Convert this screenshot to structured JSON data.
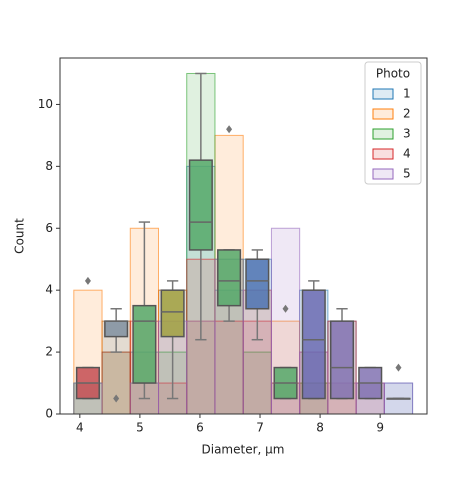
{
  "chart_data": {
    "type": "histogram",
    "xlabel": "Diameter, µm",
    "ylabel": "Count",
    "xlim": [
      3.67,
      9.78
    ],
    "ylim": [
      0,
      11.5
    ],
    "xticks": [
      4,
      5,
      6,
      7,
      8,
      9
    ],
    "yticks": [
      0,
      2,
      4,
      6,
      8,
      10
    ],
    "bins": [
      3.9,
      4.37,
      4.84,
      5.31,
      5.78,
      6.25,
      6.72,
      7.19,
      7.66,
      8.13,
      8.6,
      9.07,
      9.54
    ],
    "legend_title": "Photo",
    "legend_position": "upper right",
    "series": [
      {
        "name": "1",
        "color": "#1f77b4",
        "values": [
          1,
          3,
          2,
          4,
          8,
          4,
          5,
          1,
          4,
          3,
          1,
          1
        ]
      },
      {
        "name": "2",
        "color": "#ff7f0e",
        "values": [
          4,
          3,
          6,
          4,
          3,
          9,
          4,
          3,
          1,
          1,
          0,
          0
        ]
      },
      {
        "name": "3",
        "color": "#2ca02c",
        "values": [
          1,
          2,
          1,
          2,
          11,
          5,
          2,
          0,
          1,
          0,
          0,
          0
        ]
      },
      {
        "name": "4",
        "color": "#d62728",
        "values": [
          0,
          2,
          3,
          1,
          5,
          3,
          3,
          1,
          2,
          3,
          1,
          0
        ]
      },
      {
        "name": "5",
        "color": "#9467bd",
        "values": [
          1,
          0,
          1,
          3,
          3,
          5,
          4,
          6,
          2,
          1,
          1,
          1
        ]
      }
    ],
    "boxes": [
      {
        "x": 4.135,
        "low": 0.5,
        "q1": 0.5,
        "median": 1,
        "q3": 1.5,
        "high": 1.5,
        "color": "#c44e52"
      },
      {
        "x": 4.605,
        "low": 2,
        "q1": 2.5,
        "median": 3,
        "q3": 3,
        "high": 3.4,
        "color": "#7f8fa0"
      },
      {
        "x": 5.075,
        "low": 0.5,
        "q1": 1,
        "median": 3,
        "q3": 3.5,
        "high": 6.2,
        "color": "#55a868"
      },
      {
        "x": 5.545,
        "low": 0.5,
        "q1": 2.5,
        "median": 3.3,
        "q3": 4,
        "high": 4.3,
        "color": "#a0a040"
      },
      {
        "x": 6.015,
        "low": 2.4,
        "q1": 5.3,
        "median": 6.2,
        "q3": 8.2,
        "high": 11,
        "color": "#55a868"
      },
      {
        "x": 6.485,
        "low": 3,
        "q1": 3.5,
        "median": 4.3,
        "q3": 5.3,
        "high": 5.3,
        "color": "#55a868"
      },
      {
        "x": 6.955,
        "low": 2.4,
        "q1": 3.4,
        "median": 4.3,
        "q3": 5,
        "high": 5.3,
        "color": "#4c72b0"
      },
      {
        "x": 7.425,
        "low": 0.5,
        "q1": 0.5,
        "median": 1,
        "q3": 1.5,
        "high": 1.5,
        "color": "#55a868"
      },
      {
        "x": 7.895,
        "low": 0.5,
        "q1": 0.5,
        "median": 2.4,
        "q3": 4,
        "high": 4.3,
        "color": "#6a6ab0"
      },
      {
        "x": 8.365,
        "low": 0.5,
        "q1": 0.5,
        "median": 1.5,
        "q3": 3,
        "high": 3.4,
        "color": "#8172b2"
      },
      {
        "x": 8.835,
        "low": 0.5,
        "q1": 0.5,
        "median": 1,
        "q3": 1.5,
        "high": 1.5,
        "color": "#8172b2"
      },
      {
        "x": 9.305,
        "low": 0.5,
        "q1": 0.5,
        "median": 0.5,
        "q3": 0.5,
        "high": 0.5,
        "color": "#8c8c8c"
      }
    ],
    "outliers": [
      {
        "x": 4.135,
        "y": 4.3
      },
      {
        "x": 4.605,
        "y": 0.5
      },
      {
        "x": 6.485,
        "y": 9.2
      },
      {
        "x": 7.425,
        "y": 3.4
      },
      {
        "x": 9.305,
        "y": 1.5
      }
    ]
  }
}
